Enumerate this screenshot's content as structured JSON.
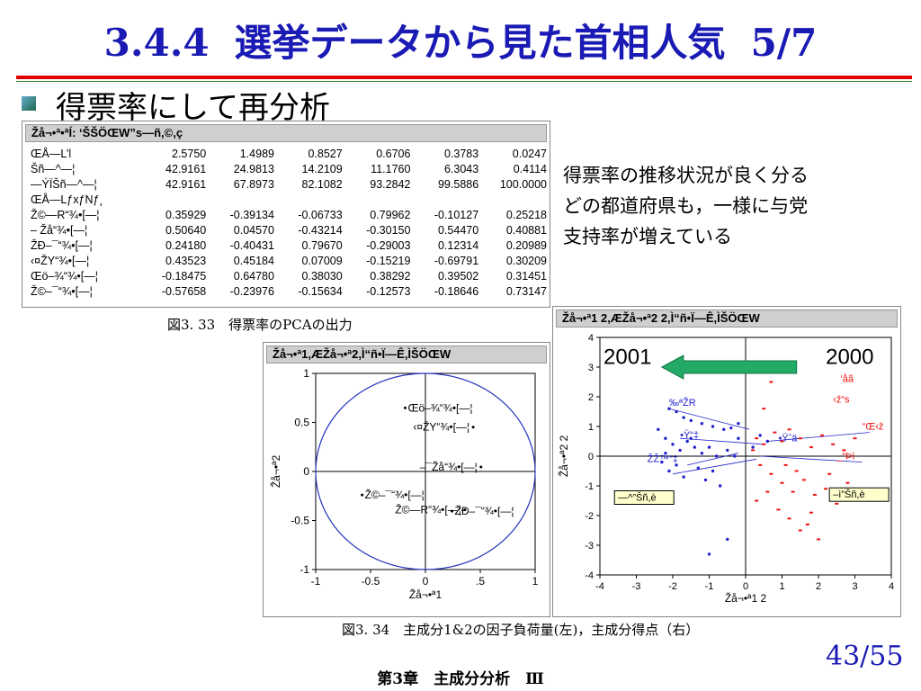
{
  "slide": {
    "number": "3.4.4",
    "title": "選挙データから見た首相人気",
    "page_of_section": "5/7",
    "subheading": "得票率にして再分析",
    "note_lines": [
      "得票率の推移状況が良く分る",
      "どの都道府県も，一様に与党",
      "支持率が増えている"
    ],
    "caption1": "図3. 33　得票率のPCAの出力",
    "caption2": "図3. 34　主成分1&2の因子負荷量(左)，主成分得点（右）",
    "page_number": "43/55",
    "footer": "第3章　主成分分析　Ⅲ"
  },
  "pca_table": {
    "window_title": "Žå¬•ª•ªÍ: ‘ŠŠÖŒW”s—ñ,©,ç",
    "rows": [
      {
        "label": "ŒÅ—L’l",
        "values": [
          "2.5750",
          "1.4989",
          "0.8527",
          "0.6706",
          "0.3783",
          "0.0247"
        ]
      },
      {
        "label": "Šñ—^—¦",
        "values": [
          "42.9161",
          "24.9813",
          "14.2109",
          "11.1760",
          "6.3043",
          "0.4114"
        ]
      },
      {
        "label": "—ÝÏŠñ—^—¦",
        "values": [
          "42.9161",
          "67.8973",
          "82.1082",
          "93.2842",
          "99.5886",
          "100.0000"
        ]
      },
      {
        "label": "ŒÅ—LƒxƒNƒ¸",
        "values": [
          "",
          "",
          "",
          "",
          "",
          ""
        ]
      },
      {
        "label": "Ž©—R“¾•[—¦",
        "values": [
          "0.35929",
          "-0.39134",
          "-0.06733",
          "0.79962",
          "-0.10127",
          "0.25218"
        ]
      },
      {
        "label": "– Žå“¾•[—¦",
        "values": [
          "0.50640",
          "0.04570",
          "-0.43214",
          "-0.30150",
          "0.54470",
          "0.40881"
        ]
      },
      {
        "label": "ŽÐ–¯“¾•[—¦",
        "values": [
          "0.24180",
          "-0.40431",
          "0.79670",
          "-0.29003",
          "0.12314",
          "0.20989"
        ]
      },
      {
        "label": "‹¤ŽY“¾•[—¦",
        "values": [
          "0.43523",
          "0.45184",
          "0.07009",
          "-0.15219",
          "-0.69791",
          "0.30209"
        ]
      },
      {
        "label": "Œö–¾“¾•[—¦",
        "values": [
          "-0.18475",
          "0.64780",
          "0.38030",
          "0.38292",
          "0.39502",
          "0.31451"
        ]
      },
      {
        "label": "Ž©–¯“¾•[—¦",
        "values": [
          "-0.57658",
          "-0.23976",
          "-0.15634",
          "-0.12573",
          "-0.18646",
          "0.73147"
        ]
      }
    ]
  },
  "chart_data": [
    {
      "type": "scatter",
      "window_title": "Žå¬•ª1,ÆŽå¬•ª2,Ì“ñ•Ï—Ê,ÌŠÖŒW",
      "xlabel": "Žå¬•ª1",
      "ylabel": "Žå¬•ª2",
      "xlim": [
        -1,
        1
      ],
      "ylim": [
        -1,
        1
      ],
      "xticks": [
        "-1",
        "-0.5",
        "0",
        ".5",
        "1"
      ],
      "yticks": [
        "1",
        "0.5",
        "0",
        "-0.5",
        "-1"
      ],
      "circle": "unit",
      "points": [
        {
          "label": "Œö–¾“¾•[—¦",
          "x": -0.18475,
          "y": 0.6478
        },
        {
          "label": "‹¤ŽY“¾•[—¦",
          "x": 0.43523,
          "y": 0.45184
        },
        {
          "label": "–¯Žå“¾•[—¦",
          "x": 0.5064,
          "y": 0.0457
        },
        {
          "label": "Ž©–¯“¾•[—¦",
          "x": -0.57658,
          "y": -0.23976
        },
        {
          "label": "ŽÐ–¯“¾•[—¦",
          "x": 0.2418,
          "y": -0.40431
        },
        {
          "label": "Ž©—R“¾•[—¦",
          "x": 0.35929,
          "y": -0.39134
        }
      ]
    },
    {
      "type": "scatter",
      "window_title": "Žå¬•ª1 2,ÆŽå¬•ª2 2,Ì“ñ•Ï—Ê,ÌŠÖŒW",
      "xlabel": "Žå¬•ª1 2",
      "ylabel": "Žå¬•ª2 2",
      "xlim": [
        -4,
        4
      ],
      "ylim": [
        -4,
        4
      ],
      "xticks": [
        "-4",
        "-3",
        "-2",
        "-1",
        "0",
        "1",
        "2",
        "3",
        "4"
      ],
      "yticks": [
        "4",
        "3",
        "2",
        "1",
        "0",
        "-1",
        "-2",
        "-3",
        "-4"
      ],
      "annotation_left": "2001",
      "annotation_right": "2000",
      "arrow_color": "#22aa66",
      "series": [
        {
          "name": "",
          "color": "#2222cc",
          "points": [
            [
              -2.1,
              1.6
            ],
            [
              -1.9,
              1.5
            ],
            [
              -1.7,
              1.3
            ],
            [
              -1.5,
              1.2
            ],
            [
              -1.2,
              1.1
            ],
            [
              -0.9,
              1.0
            ],
            [
              -0.6,
              0.9
            ],
            [
              -0.4,
              0.95
            ],
            [
              -0.2,
              1.1
            ],
            [
              -2.2,
              0.6
            ],
            [
              -2.0,
              0.4
            ],
            [
              -1.8,
              0.2
            ],
            [
              -1.6,
              0.5
            ],
            [
              -1.4,
              0.3
            ],
            [
              -1.2,
              0.1
            ],
            [
              -1.0,
              0.3
            ],
            [
              -0.8,
              0.0
            ],
            [
              -0.5,
              0.2
            ],
            [
              -0.3,
              0.0
            ],
            [
              -2.3,
              -0.2
            ],
            [
              -2.1,
              -0.5
            ],
            [
              -1.9,
              -0.3
            ],
            [
              -1.7,
              -0.7
            ],
            [
              -1.3,
              -0.4
            ],
            [
              -1.1,
              -0.8
            ],
            [
              -0.9,
              -0.5
            ],
            [
              -0.7,
              -1.0
            ],
            [
              -0.2,
              0.6
            ],
            [
              0.2,
              0.3
            ],
            [
              0.4,
              0.7
            ],
            [
              -2.4,
              0.9
            ],
            [
              -1.5,
              0.6
            ],
            [
              -1.0,
              -3.3
            ],
            [
              -0.5,
              -2.8
            ],
            [
              0.6,
              0.5
            ],
            [
              -2.2,
              0.1
            ]
          ]
        },
        {
          "name": "",
          "color": "#ee1111",
          "points": [
            [
              0.3,
              0.6
            ],
            [
              0.5,
              0.4
            ],
            [
              0.8,
              0.8
            ],
            [
              1.0,
              0.5
            ],
            [
              1.2,
              0.9
            ],
            [
              1.5,
              0.6
            ],
            [
              1.8,
              0.3
            ],
            [
              2.1,
              0.7
            ],
            [
              2.4,
              0.4
            ],
            [
              2.7,
              0.2
            ],
            [
              3.0,
              0.6
            ],
            [
              0.4,
              -0.3
            ],
            [
              0.7,
              -0.6
            ],
            [
              1.0,
              -0.9
            ],
            [
              1.3,
              -1.2
            ],
            [
              1.6,
              -0.8
            ],
            [
              1.9,
              -1.3
            ],
            [
              2.2,
              -1.1
            ],
            [
              2.5,
              -1.6
            ],
            [
              0.9,
              -1.8
            ],
            [
              1.2,
              -2.1
            ],
            [
              1.5,
              -2.5
            ],
            [
              1.8,
              -1.9
            ],
            [
              2.0,
              -2.8
            ],
            [
              0.6,
              -1.2
            ],
            [
              1.1,
              -0.3
            ],
            [
              1.4,
              -0.5
            ],
            [
              2.3,
              -0.6
            ],
            [
              0.7,
              2.5
            ],
            [
              0.3,
              -1.5
            ],
            [
              1.7,
              -2.3
            ],
            [
              2.8,
              -0.9
            ],
            [
              0.5,
              1.6
            ],
            [
              0.2,
              0.2
            ]
          ]
        }
      ],
      "labels": [
        {
          "text": "‰ªŽR",
          "color": "#2222cc",
          "x": -2.1,
          "y": 1.7
        },
        {
          "text": "•Ÿ“‡",
          "color": "#2222cc",
          "x": -1.8,
          "y": 0.6
        },
        {
          "text": "Ž­Ž™“‡",
          "color": "#2222cc",
          "x": -2.7,
          "y": -0.2
        },
        {
          "text": "•Ÿˆä",
          "color": "#2222cc",
          "x": 0.9,
          "y": 0.5
        },
        {
          "text": "‘åã",
          "color": "#ee1111",
          "x": 2.6,
          "y": 2.5
        },
        {
          "text": "‹ž“s",
          "color": "#ee1111",
          "x": 2.4,
          "y": 1.8
        },
        {
          "text": "“Œ‹ž",
          "color": "#ee1111",
          "x": 3.2,
          "y": 0.9
        },
        {
          "text": "_“Þì",
          "color": "#ee1111",
          "x": 2.5,
          "y": -0.1
        },
        {
          "text": "—^”Šñ,è",
          "color": "#000000",
          "x": -3.6,
          "y": -1.5,
          "boxed": true
        },
        {
          "text": "–ì”Šñ,è",
          "color": "#000000",
          "x": 2.3,
          "y": -1.4,
          "boxed": true
        }
      ]
    }
  ]
}
